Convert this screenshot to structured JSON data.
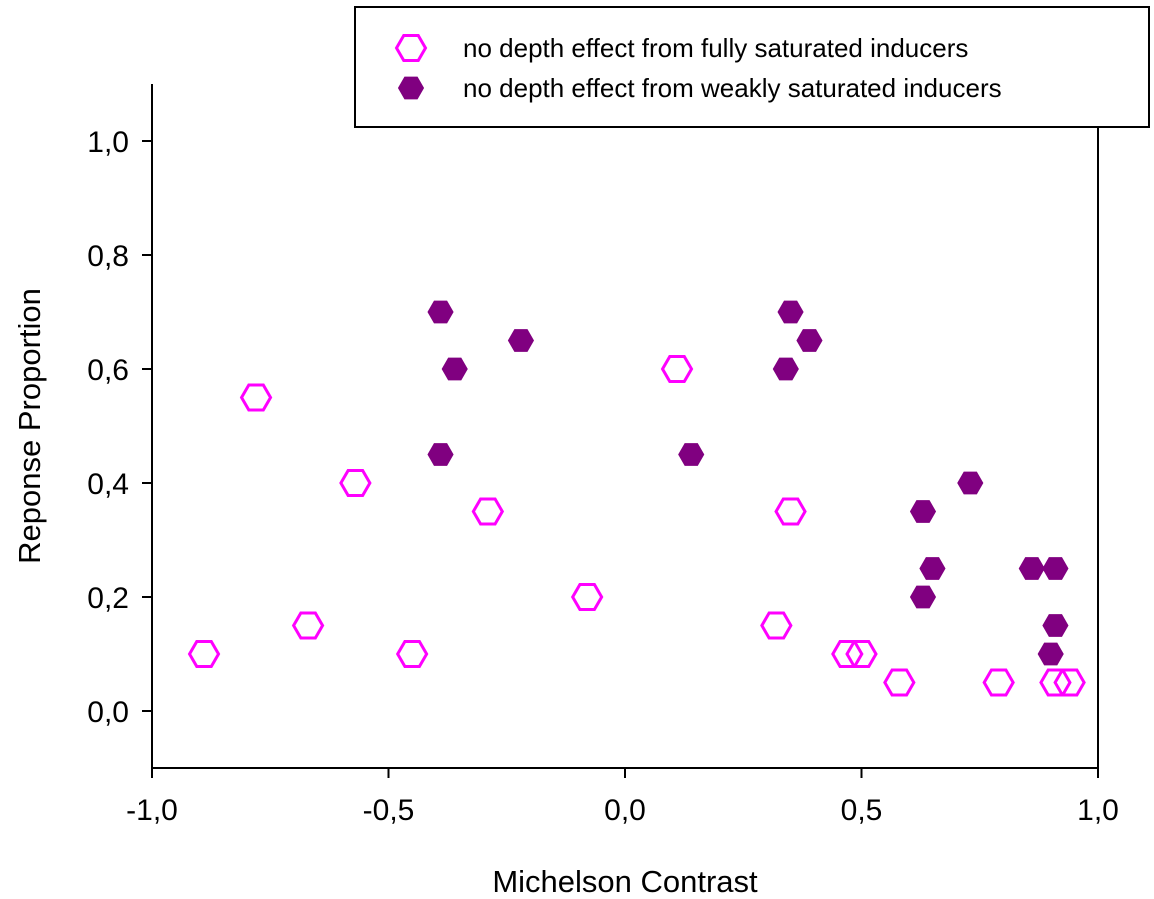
{
  "chart_data": {
    "type": "scatter",
    "title": "",
    "xlabel": "Michelson Contrast",
    "ylabel": "Reponse Proportion",
    "xlim": [
      -1.0,
      1.0
    ],
    "ylim": [
      -0.1,
      1.1
    ],
    "x_ticks": [
      {
        "value": -1.0,
        "label": "-1,0"
      },
      {
        "value": -0.5,
        "label": "-0,5"
      },
      {
        "value": 0.0,
        "label": "0,0"
      },
      {
        "value": 0.5,
        "label": "0,5"
      },
      {
        "value": 1.0,
        "label": "1,0"
      }
    ],
    "y_ticks": [
      {
        "value": 0.0,
        "label": "0,0"
      },
      {
        "value": 0.2,
        "label": "0,2"
      },
      {
        "value": 0.4,
        "label": "0,4"
      },
      {
        "value": 0.6,
        "label": "0,6"
      },
      {
        "value": 0.8,
        "label": "0,8"
      },
      {
        "value": 1.0,
        "label": "1,0"
      }
    ],
    "grid": false,
    "legend_position": "top-right",
    "series": [
      {
        "name": "no depth effect from fully saturated inducers",
        "marker": "hexagon-open",
        "color": "#ff00ff",
        "points": [
          {
            "x": -0.89,
            "y": 0.1
          },
          {
            "x": -0.78,
            "y": 0.55
          },
          {
            "x": -0.67,
            "y": 0.15
          },
          {
            "x": -0.57,
            "y": 0.4
          },
          {
            "x": -0.45,
            "y": 0.1
          },
          {
            "x": -0.29,
            "y": 0.35
          },
          {
            "x": -0.08,
            "y": 0.2
          },
          {
            "x": 0.11,
            "y": 0.6
          },
          {
            "x": 0.32,
            "y": 0.15
          },
          {
            "x": 0.35,
            "y": 0.35
          },
          {
            "x": 0.47,
            "y": 0.1
          },
          {
            "x": 0.5,
            "y": 0.1
          },
          {
            "x": 0.58,
            "y": 0.05
          },
          {
            "x": 0.79,
            "y": 0.05
          },
          {
            "x": 0.91,
            "y": 0.05
          },
          {
            "x": 0.94,
            "y": 0.05
          }
        ]
      },
      {
        "name": "no depth effect from weakly saturated inducers",
        "marker": "hexagon-filled",
        "color": "#800080",
        "points": [
          {
            "x": -0.39,
            "y": 0.7
          },
          {
            "x": -0.39,
            "y": 0.45
          },
          {
            "x": -0.36,
            "y": 0.6
          },
          {
            "x": -0.22,
            "y": 0.65
          },
          {
            "x": 0.14,
            "y": 0.45
          },
          {
            "x": 0.34,
            "y": 0.6
          },
          {
            "x": 0.35,
            "y": 0.7
          },
          {
            "x": 0.39,
            "y": 0.65
          },
          {
            "x": 0.63,
            "y": 0.2
          },
          {
            "x": 0.63,
            "y": 0.35
          },
          {
            "x": 0.65,
            "y": 0.25
          },
          {
            "x": 0.73,
            "y": 0.4
          },
          {
            "x": 0.86,
            "y": 0.25
          },
          {
            "x": 0.9,
            "y": 0.1
          },
          {
            "x": 0.91,
            "y": 0.25
          },
          {
            "x": 0.91,
            "y": 0.15
          }
        ]
      }
    ]
  }
}
